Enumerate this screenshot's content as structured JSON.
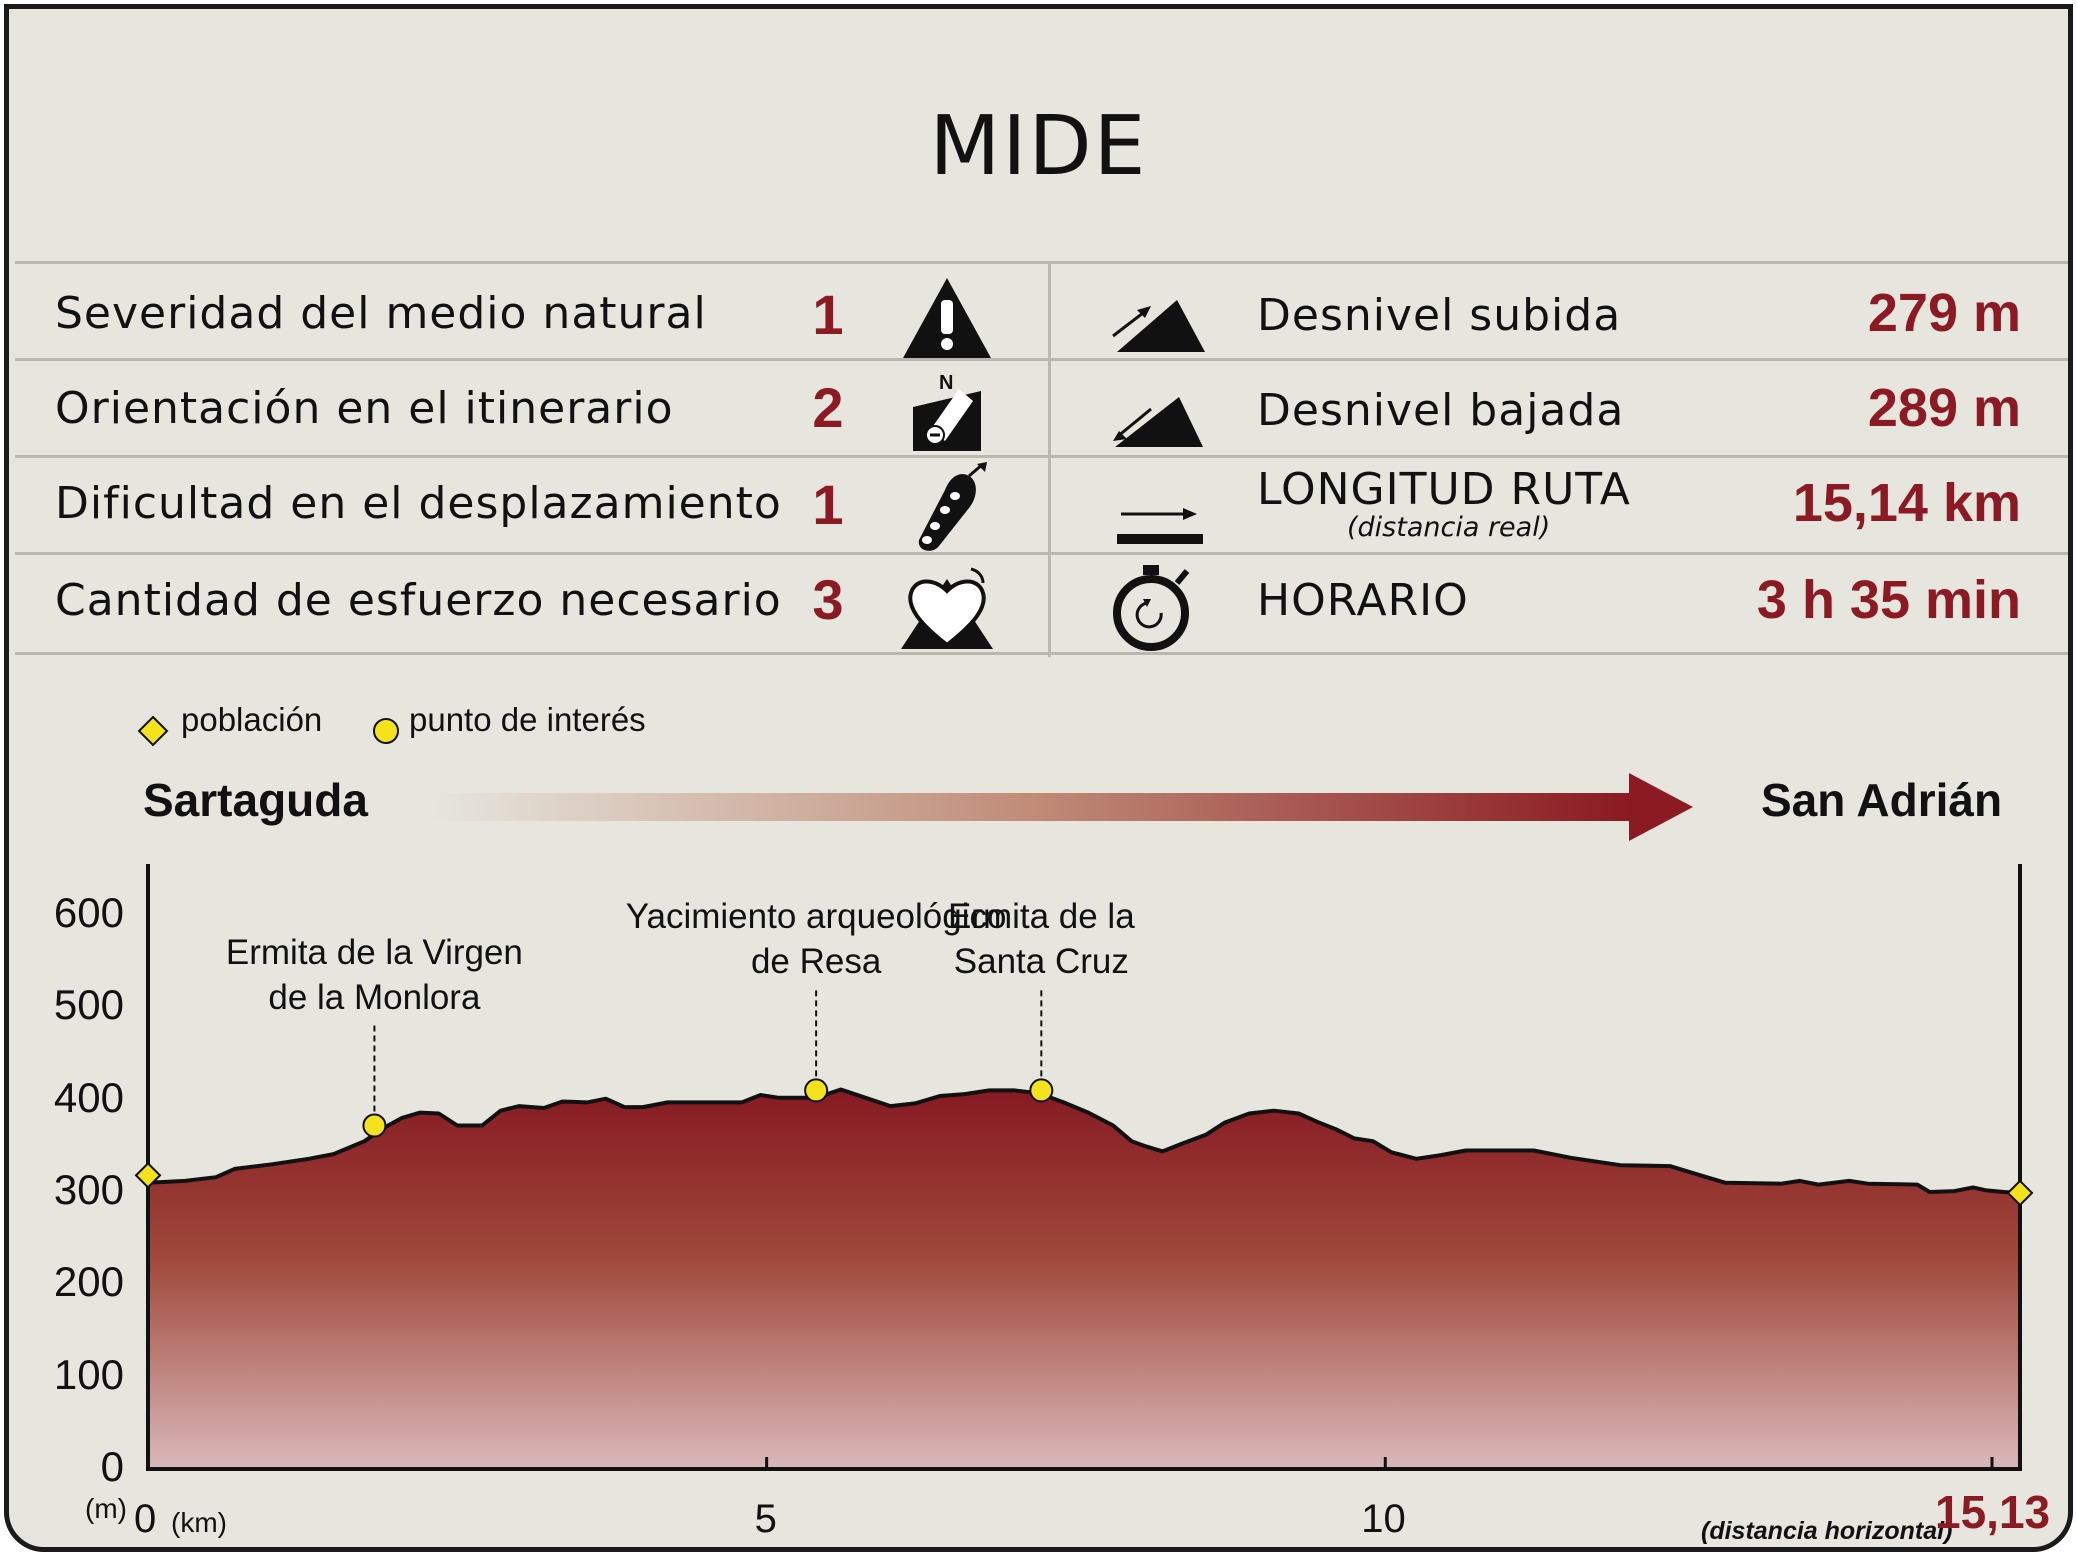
{
  "title": "MIDE",
  "mide": [
    {
      "label": "Severidad del medio natural",
      "value": "1",
      "icon": "danger-warning-icon"
    },
    {
      "label": "Orientación en el itinerario",
      "value": "2",
      "icon": "orientation-compass-icon"
    },
    {
      "label": "Dificultad en el desplazamiento",
      "value": "1",
      "icon": "footprint-icon"
    },
    {
      "label": "Cantidad de esfuerzo necesario",
      "value": "3",
      "icon": "heart-effort-icon"
    }
  ],
  "route": [
    {
      "label": "Desnivel subida",
      "sublabel": "",
      "value": "279 m",
      "icon": "ascent-icon"
    },
    {
      "label": "Desnivel bajada",
      "sublabel": "",
      "value": "289 m",
      "icon": "descent-icon"
    },
    {
      "label": "LONGITUD RUTA",
      "sublabel": "(distancia real)",
      "value": "15,14 km",
      "icon": "distance-arrow-icon"
    },
    {
      "label": "HORARIO",
      "sublabel": "",
      "value": "3 h 35 min",
      "icon": "stopwatch-icon"
    }
  ],
  "legend": {
    "town": "población",
    "poi": "punto de interés"
  },
  "start_name": "Sartaguda",
  "end_name": "San Adrián",
  "chart_data": {
    "type": "area",
    "title": "",
    "xlabel": "(km)",
    "xlabel_note": "(distancia horizontal)",
    "ylabel": "(m)",
    "xlim": [
      0,
      15.13
    ],
    "ylim": [
      0,
      600
    ],
    "x_end_label": "15,13",
    "x_ticks": [
      "0",
      "5",
      "10"
    ],
    "x_tick_values": [
      0,
      5,
      10
    ],
    "y_ticks": [
      "0",
      "100",
      "200",
      "300",
      "400",
      "500",
      "600"
    ],
    "y_tick_values": [
      0,
      100,
      200,
      300,
      400,
      500,
      600
    ],
    "colors": {
      "fill_top": "#861a22",
      "fill_mid": "#a04a3c",
      "fill_bottom": "#d9b8ba",
      "marker": "#f4e21c",
      "accent": "#8b1a22"
    },
    "profile": [
      [
        0.0,
        310
      ],
      [
        0.3,
        312
      ],
      [
        0.55,
        316
      ],
      [
        0.7,
        325
      ],
      [
        1.0,
        330
      ],
      [
        1.3,
        336
      ],
      [
        1.5,
        341
      ],
      [
        1.75,
        355
      ],
      [
        1.9,
        369
      ],
      [
        2.05,
        380
      ],
      [
        2.2,
        386
      ],
      [
        2.35,
        385
      ],
      [
        2.5,
        372
      ],
      [
        2.7,
        372
      ],
      [
        2.85,
        388
      ],
      [
        3.0,
        393
      ],
      [
        3.2,
        391
      ],
      [
        3.35,
        398
      ],
      [
        3.55,
        397
      ],
      [
        3.7,
        401
      ],
      [
        3.85,
        392
      ],
      [
        4.0,
        392
      ],
      [
        4.2,
        397
      ],
      [
        4.6,
        397
      ],
      [
        4.8,
        397
      ],
      [
        4.95,
        405
      ],
      [
        5.1,
        402
      ],
      [
        5.4,
        402
      ],
      [
        5.6,
        411
      ],
      [
        5.8,
        402
      ],
      [
        6.0,
        393
      ],
      [
        6.2,
        396
      ],
      [
        6.4,
        404
      ],
      [
        6.6,
        406
      ],
      [
        6.8,
        410
      ],
      [
        7.0,
        410
      ],
      [
        7.2,
        407
      ],
      [
        7.4,
        397
      ],
      [
        7.6,
        386
      ],
      [
        7.8,
        372
      ],
      [
        7.95,
        355
      ],
      [
        8.05,
        350
      ],
      [
        8.2,
        344
      ],
      [
        8.35,
        352
      ],
      [
        8.55,
        362
      ],
      [
        8.7,
        375
      ],
      [
        8.9,
        385
      ],
      [
        9.1,
        388
      ],
      [
        9.3,
        385
      ],
      [
        9.45,
        376
      ],
      [
        9.6,
        368
      ],
      [
        9.75,
        358
      ],
      [
        9.9,
        355
      ],
      [
        10.05,
        343
      ],
      [
        10.25,
        336
      ],
      [
        10.45,
        340
      ],
      [
        10.65,
        345
      ],
      [
        11.2,
        345
      ],
      [
        11.5,
        337
      ],
      [
        11.9,
        329
      ],
      [
        12.3,
        328
      ],
      [
        12.55,
        318
      ],
      [
        12.75,
        310
      ],
      [
        13.2,
        309
      ],
      [
        13.35,
        312
      ],
      [
        13.5,
        308
      ],
      [
        13.75,
        312
      ],
      [
        13.9,
        309
      ],
      [
        14.3,
        308
      ],
      [
        14.4,
        300
      ],
      [
        14.6,
        301
      ],
      [
        14.75,
        305
      ],
      [
        14.85,
        302
      ],
      [
        15.0,
        300
      ],
      [
        15.13,
        299
      ]
    ],
    "towns": [
      {
        "name": "Sartaguda",
        "x": 0.0,
        "y": 318
      },
      {
        "name": "San Adrián",
        "x": 15.13,
        "y": 299
      }
    ],
    "points_of_interest": [
      {
        "name": "Ermita de la Virgen\nde la Monlora",
        "x": 1.83,
        "y": 372
      },
      {
        "name": "Yacimiento arqueológico\nde Resa",
        "x": 5.4,
        "y": 410
      },
      {
        "name": "Ermita de la\nSanta Cruz",
        "x": 7.22,
        "y": 410
      }
    ]
  }
}
